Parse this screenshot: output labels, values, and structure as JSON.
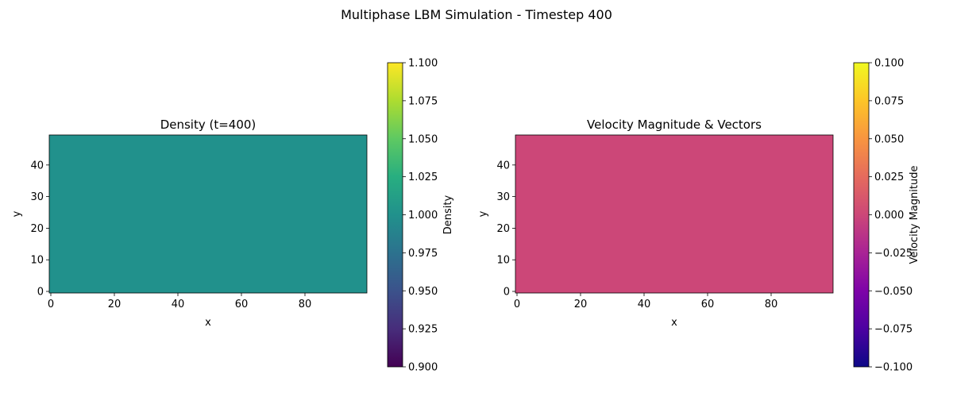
{
  "suptitle": "Multiphase LBM Simulation - Timestep 400",
  "chart_data": [
    {
      "type": "heatmap",
      "title": "Density (t=400)",
      "xlabel": "x",
      "ylabel": "y",
      "xlim": [
        -0.5,
        99.5
      ],
      "ylim": [
        -0.5,
        49.5
      ],
      "xticks": [
        0,
        20,
        40,
        60,
        80
      ],
      "yticks": [
        0,
        10,
        20,
        30,
        40
      ],
      "grid_shape": [
        50,
        100
      ],
      "field_value": 1.0,
      "colormap": "viridis",
      "colorbar": {
        "label": "Density",
        "range": [
          0.9,
          1.1
        ],
        "ticks": [
          "0.900",
          "0.925",
          "0.950",
          "0.975",
          "1.000",
          "1.025",
          "1.050",
          "1.075",
          "1.100"
        ]
      },
      "fill_color": "#21918c"
    },
    {
      "type": "heatmap",
      "title": "Velocity Magnitude & Vectors",
      "xlabel": "x",
      "ylabel": "y",
      "xlim": [
        -0.5,
        99.5
      ],
      "ylim": [
        -0.5,
        49.5
      ],
      "xticks": [
        0,
        20,
        40,
        60,
        80
      ],
      "yticks": [
        0,
        10,
        20,
        30,
        40
      ],
      "grid_shape": [
        50,
        100
      ],
      "field_value": 0.0,
      "colormap": "plasma",
      "colorbar": {
        "label": "Velocity Magnitude",
        "range": [
          -0.1,
          0.1
        ],
        "ticks": [
          "−0.100",
          "−0.075",
          "−0.050",
          "−0.025",
          "0.000",
          "0.025",
          "0.050",
          "0.075",
          "0.100"
        ]
      },
      "fill_color": "#cc4778"
    }
  ]
}
